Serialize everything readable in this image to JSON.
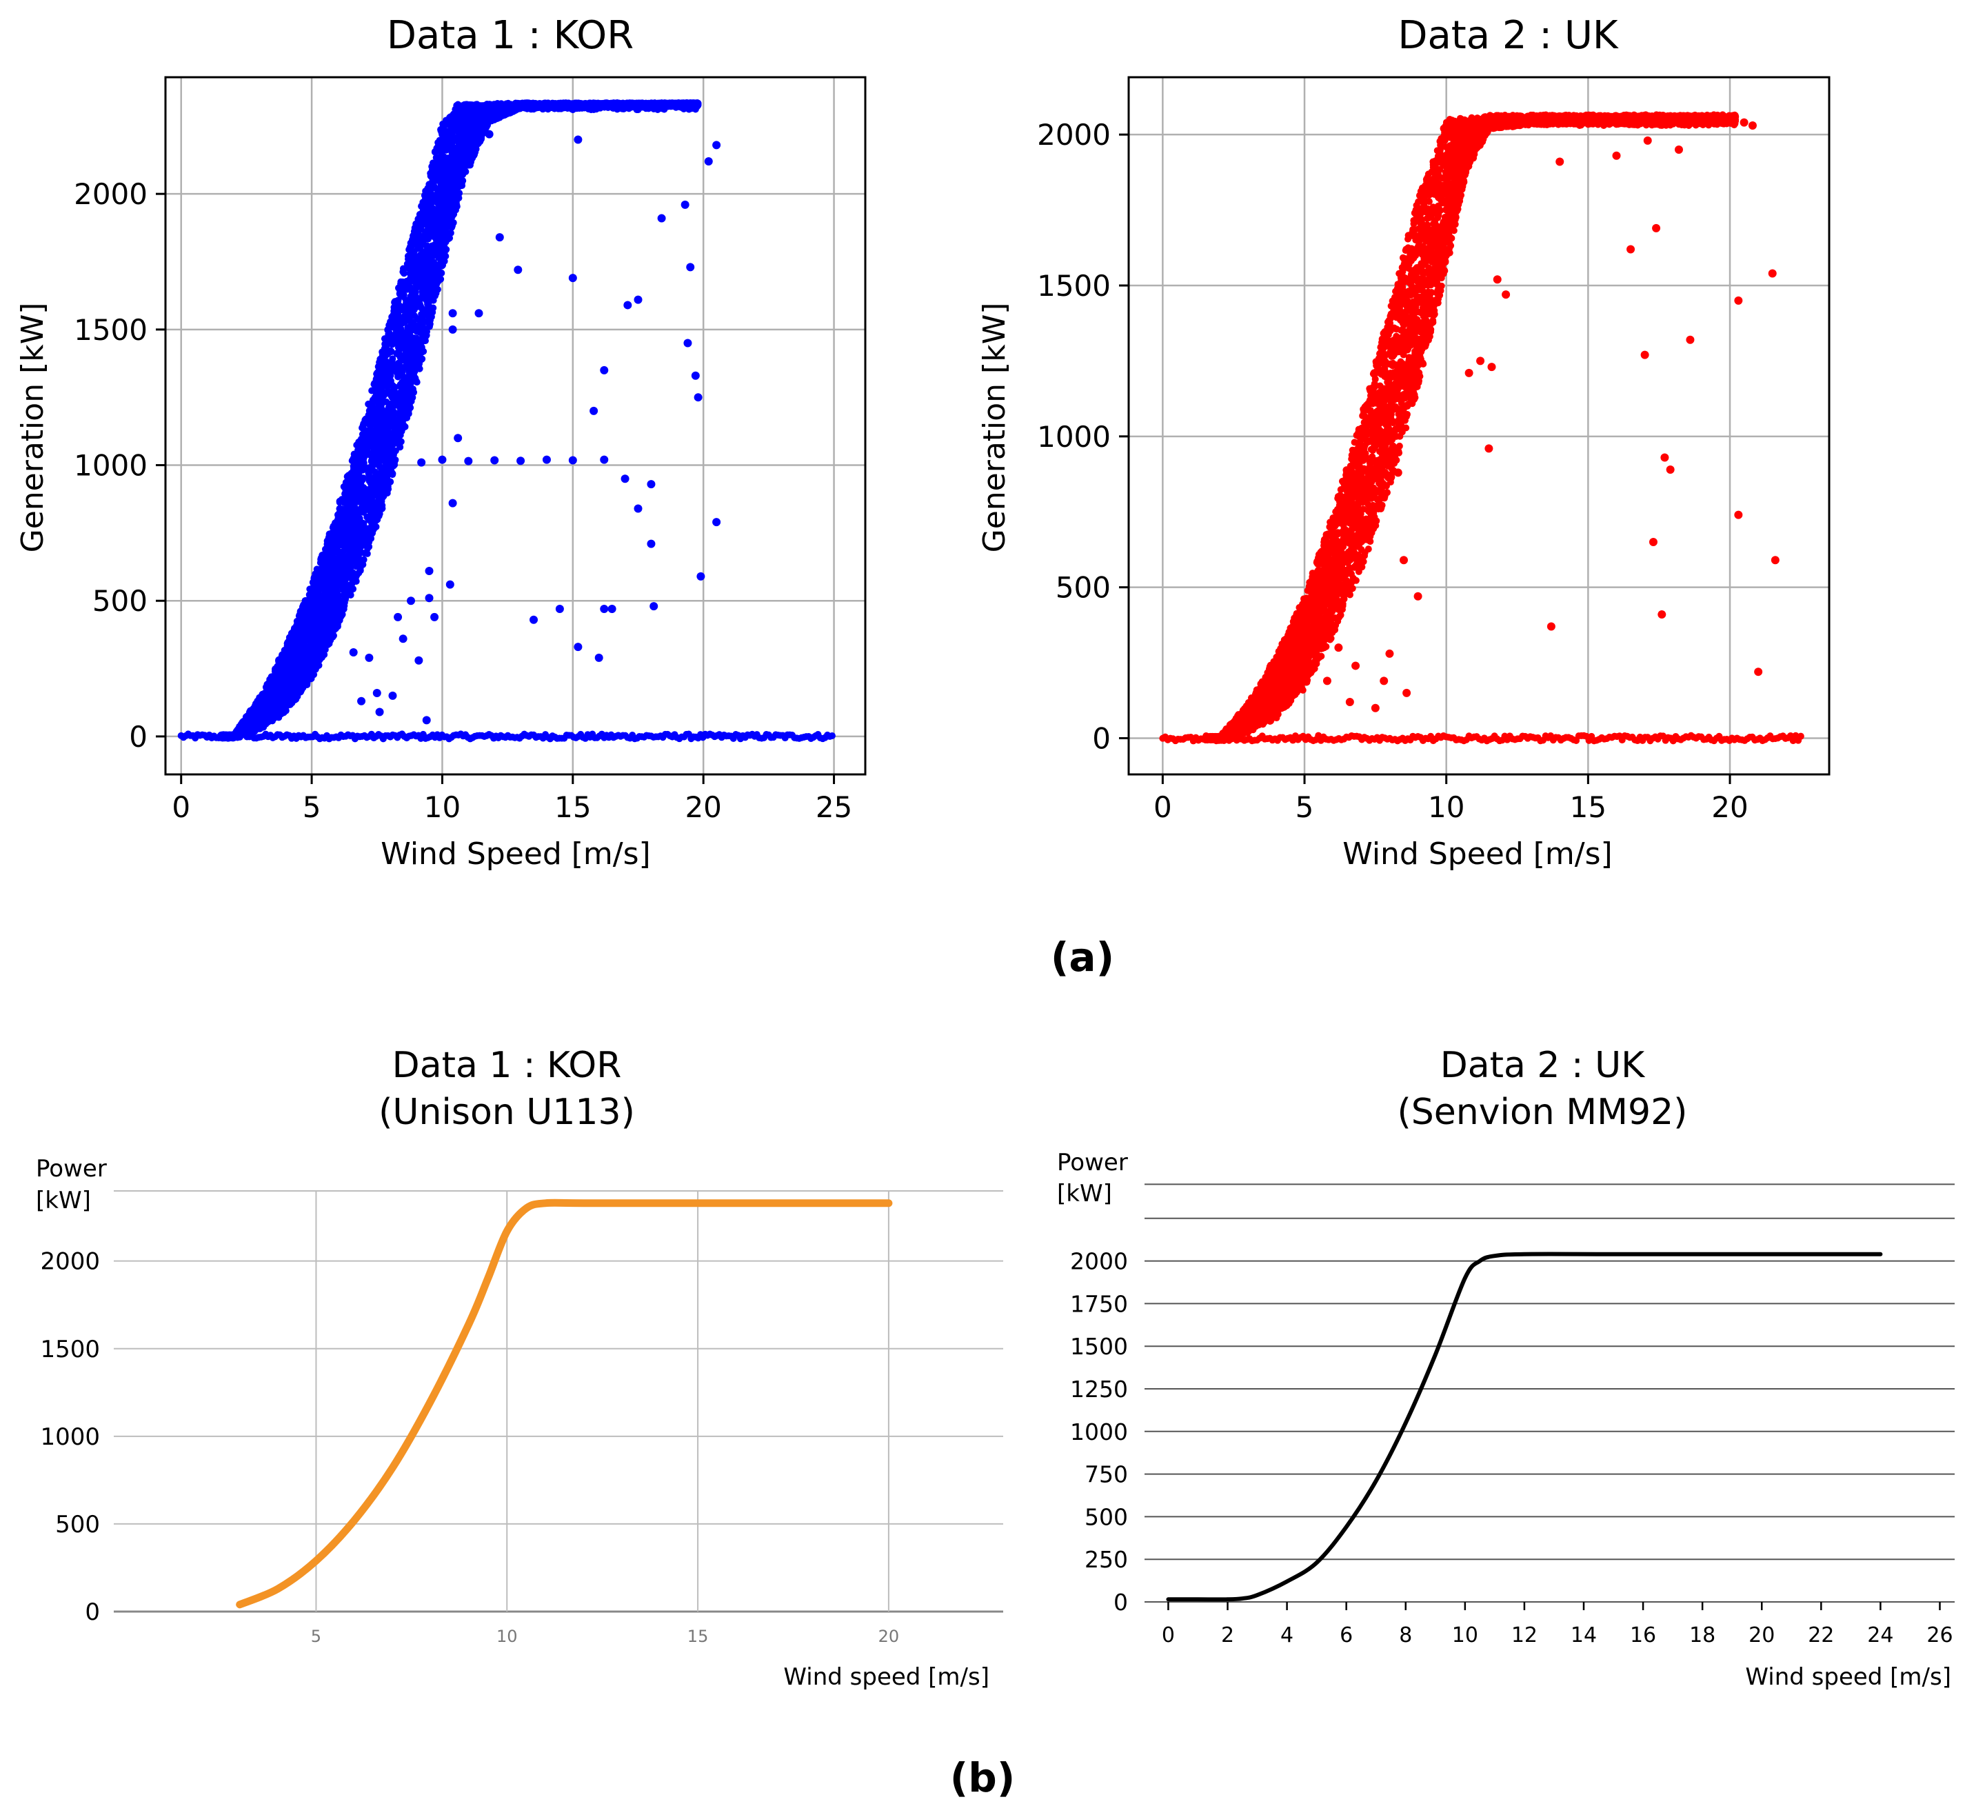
{
  "figure": {
    "label_a": "(a)",
    "label_b": "(b)"
  },
  "colors": {
    "kor_scatter": "#0000ff",
    "uk_scatter": "#ff0000",
    "kor_curve": "#f39325",
    "uk_curve": "#000000",
    "grid_a": "#b0b0b0",
    "grid_b": "#bdbdbd"
  },
  "chart_data": [
    {
      "id": "scatter_kor",
      "type": "scatter",
      "title": "Data 1 : KOR",
      "xlabel": "Wind Speed [m/s]",
      "ylabel": "Generation [kW]",
      "xlim": [
        -0.6,
        26.2
      ],
      "ylim": [
        -140,
        2430
      ],
      "xticks": [
        0,
        5,
        10,
        15,
        20,
        25
      ],
      "yticks": [
        0,
        500,
        1000,
        1500,
        2000
      ],
      "grid": true,
      "rated_kw": 2330,
      "band": [
        [
          0,
          0,
          0
        ],
        [
          2,
          0,
          0
        ],
        [
          3,
          25,
          140
        ],
        [
          4,
          90,
          330
        ],
        [
          5,
          210,
          560
        ],
        [
          6,
          400,
          840
        ],
        [
          7,
          640,
          1170
        ],
        [
          8,
          930,
          1540
        ],
        [
          9,
          1290,
          1900
        ],
        [
          10,
          1710,
          2260
        ],
        [
          10.8,
          2050,
          2330
        ],
        [
          11.8,
          2270,
          2330
        ],
        [
          13,
          2320,
          2330
        ],
        [
          20,
          2330,
          2330
        ]
      ],
      "outliers": [
        [
          9.2,
          1010
        ],
        [
          10,
          1020
        ],
        [
          11,
          1015
        ],
        [
          12,
          1018
        ],
        [
          13,
          1016
        ],
        [
          14,
          1020
        ],
        [
          15,
          1018
        ],
        [
          16.2,
          1020
        ],
        [
          10.6,
          1100
        ],
        [
          10.4,
          860
        ],
        [
          13.5,
          430
        ],
        [
          14.5,
          470
        ],
        [
          15.2,
          330
        ],
        [
          16,
          290
        ],
        [
          16.2,
          470
        ],
        [
          16.5,
          470
        ],
        [
          17,
          950
        ],
        [
          17.5,
          840
        ],
        [
          18,
          710
        ],
        [
          18,
          930
        ],
        [
          18.1,
          480
        ],
        [
          19.4,
          1450
        ],
        [
          19.5,
          1730
        ],
        [
          19.7,
          1330
        ],
        [
          19.8,
          1250
        ],
        [
          19.9,
          590
        ],
        [
          20.5,
          790
        ],
        [
          20.5,
          2180
        ],
        [
          20.2,
          2120
        ],
        [
          19.3,
          1960
        ],
        [
          18.4,
          1910
        ],
        [
          17.1,
          1590
        ],
        [
          17.5,
          1610
        ],
        [
          15,
          1690
        ],
        [
          16.2,
          1350
        ],
        [
          15.8,
          1200
        ],
        [
          12.2,
          1840
        ],
        [
          12.9,
          1720
        ],
        [
          9.7,
          440
        ],
        [
          9.5,
          510
        ],
        [
          9.1,
          280
        ],
        [
          9.4,
          60
        ],
        [
          8.3,
          440
        ],
        [
          8.5,
          360
        ],
        [
          7.5,
          160
        ],
        [
          7.6,
          90
        ],
        [
          6.9,
          130
        ],
        [
          6.6,
          310
        ],
        [
          7.2,
          290
        ],
        [
          8.1,
          150
        ],
        [
          9.5,
          610
        ],
        [
          8.8,
          500
        ],
        [
          11.8,
          2220
        ],
        [
          15.2,
          2200
        ],
        [
          10.4,
          1560
        ],
        [
          11.4,
          1560
        ],
        [
          10.3,
          560
        ],
        [
          10.4,
          1500
        ]
      ],
      "zero_line": {
        "x_from": 0,
        "x_to": 25,
        "y": 0
      }
    },
    {
      "id": "scatter_uk",
      "type": "scatter",
      "title": "Data 2 : UK",
      "xlabel": "Wind Speed [m/s]",
      "ylabel": "Generation [kW]",
      "xlim": [
        -1.2,
        23.5
      ],
      "ylim": [
        -120,
        2190
      ],
      "xticks": [
        0,
        5,
        10,
        15,
        20
      ],
      "yticks": [
        0,
        500,
        1000,
        1500,
        2000
      ],
      "grid": true,
      "rated_kw": 2050,
      "band": [
        [
          0,
          0,
          0
        ],
        [
          2,
          0,
          0
        ],
        [
          3,
          20,
          110
        ],
        [
          4,
          70,
          270
        ],
        [
          5,
          170,
          470
        ],
        [
          6,
          340,
          740
        ],
        [
          7,
          560,
          1060
        ],
        [
          8,
          840,
          1420
        ],
        [
          9,
          1160,
          1790
        ],
        [
          10,
          1550,
          2050
        ],
        [
          10.7,
          1880,
          2050
        ],
        [
          11.5,
          2020,
          2060
        ],
        [
          13,
          2040,
          2060
        ],
        [
          20,
          2040,
          2060
        ]
      ],
      "outliers": [
        [
          10.8,
          1210
        ],
        [
          11.2,
          1250
        ],
        [
          11.6,
          1230
        ],
        [
          11.5,
          960
        ],
        [
          11.8,
          1520
        ],
        [
          12.1,
          1470
        ],
        [
          13.7,
          370
        ],
        [
          16.5,
          1620
        ],
        [
          17,
          1270
        ],
        [
          17.4,
          1690
        ],
        [
          17.3,
          650
        ],
        [
          17.6,
          410
        ],
        [
          17.7,
          930
        ],
        [
          17.9,
          890
        ],
        [
          18.6,
          1320
        ],
        [
          20.3,
          1450
        ],
        [
          20.3,
          740
        ],
        [
          21,
          220
        ],
        [
          21.5,
          1540
        ],
        [
          21.6,
          590
        ],
        [
          20.5,
          2040
        ],
        [
          20.8,
          2030
        ],
        [
          17.1,
          1980
        ],
        [
          16,
          1930
        ],
        [
          14,
          1910
        ],
        [
          18.2,
          1950
        ],
        [
          6.2,
          300
        ],
        [
          5.8,
          190
        ],
        [
          6.6,
          120
        ],
        [
          7.5,
          100
        ],
        [
          7.8,
          190
        ],
        [
          8.6,
          150
        ],
        [
          9,
          470
        ],
        [
          8.5,
          590
        ],
        [
          8.3,
          880
        ],
        [
          7.2,
          810
        ],
        [
          5.5,
          270
        ],
        [
          6.8,
          240
        ],
        [
          8,
          280
        ]
      ],
      "zero_line": {
        "x_from": 0,
        "x_to": 22.5,
        "y": 0
      }
    },
    {
      "id": "curve_kor",
      "type": "line",
      "title_line1": "Data 1 : KOR",
      "title_line2": "(Unison U113)",
      "ylabel_line1": "Power",
      "ylabel_line2": "[kW]",
      "xlabel": "Wind speed [m/s]",
      "xlim": [
        -0.3,
        23
      ],
      "ylim": [
        0,
        2400
      ],
      "xticks": [
        5,
        10,
        15,
        20
      ],
      "yticks": [
        0,
        500,
        1000,
        1500,
        2000
      ],
      "x": [
        3,
        4,
        5,
        6,
        7,
        8,
        9,
        9.5,
        10,
        10.5,
        11,
        12,
        15,
        20
      ],
      "y": [
        40,
        130,
        290,
        520,
        820,
        1200,
        1640,
        1900,
        2170,
        2300,
        2330,
        2330,
        2330,
        2330
      ]
    },
    {
      "id": "curve_uk",
      "type": "line",
      "title_line1": "Data 2 : UK",
      "title_line2": "(Senvion MM92)",
      "ylabel_line1": "Power",
      "ylabel_line2": "[kW]",
      "xlabel": "Wind speed [m/s]",
      "xlim": [
        -0.8,
        26.5
      ],
      "ylim": [
        0,
        2500
      ],
      "xticks": [
        0,
        2,
        4,
        6,
        8,
        10,
        12,
        14,
        16,
        18,
        20,
        22,
        24,
        26
      ],
      "yticks": [
        0,
        250,
        500,
        750,
        1000,
        1250,
        1500,
        1750,
        2000
      ],
      "extra_gridlines_y": [
        2250,
        2450
      ],
      "x": [
        0,
        1,
        2,
        2.5,
        3,
        4,
        5,
        6,
        7,
        8,
        9,
        10,
        10.5,
        11,
        12,
        15,
        20,
        24
      ],
      "y": [
        15,
        15,
        15,
        20,
        40,
        120,
        230,
        440,
        710,
        1050,
        1450,
        1900,
        2000,
        2030,
        2040,
        2040,
        2040,
        2040
      ]
    }
  ]
}
